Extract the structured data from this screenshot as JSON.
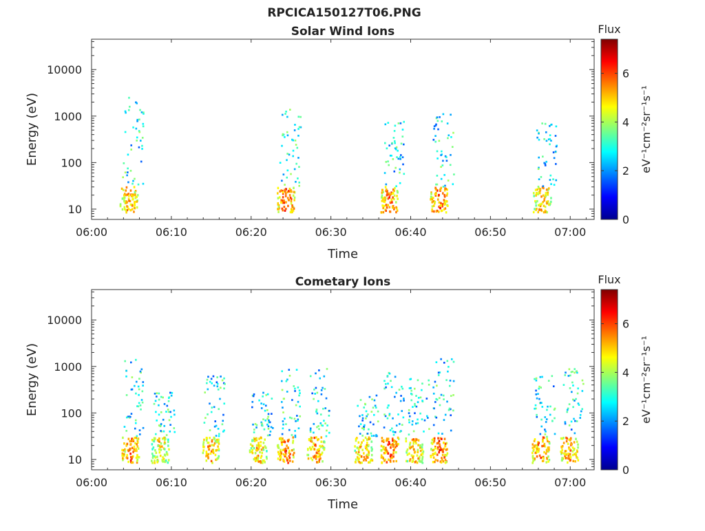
{
  "figure": {
    "title": "RPCICA150127T06.PNG"
  },
  "chart_data": [
    {
      "type": "heatmap",
      "title": "Solar Wind Ions",
      "xlabel": "Time",
      "ylabel": "Energy (eV)",
      "x_ticks": [
        "06:00",
        "06:10",
        "06:20",
        "06:30",
        "06:40",
        "06:50",
        "07:00"
      ],
      "x_range_minutes": [
        0,
        63
      ],
      "y_scale": "log",
      "y_ticks": [
        10,
        100,
        1000,
        10000
      ],
      "y_tick_labels": [
        "10",
        "100",
        "1000",
        "10000"
      ],
      "y_range": [
        6,
        45000
      ],
      "colorbar": {
        "title": "Flux",
        "label": "eV⁻¹cm⁻²sr⁻¹s⁻¹",
        "ticks": [
          0,
          2,
          4,
          6
        ],
        "range": [
          0,
          7.4
        ]
      },
      "bursts": [
        {
          "t": 4.6,
          "core_flux": 6.4,
          "upper": 3200
        },
        {
          "t": 24.3,
          "core_flux": 6.8,
          "upper": 1500
        },
        {
          "t": 37.3,
          "core_flux": 6.6,
          "upper": 900
        },
        {
          "t": 43.5,
          "core_flux": 6.7,
          "upper": 1200
        },
        {
          "t": 56.4,
          "core_flux": 6.2,
          "upper": 800
        }
      ]
    },
    {
      "type": "heatmap",
      "title": "Cometary Ions",
      "xlabel": "Time",
      "ylabel": "Energy (eV)",
      "x_ticks": [
        "06:00",
        "06:10",
        "06:20",
        "06:30",
        "06:40",
        "06:50",
        "07:00"
      ],
      "x_range_minutes": [
        0,
        63
      ],
      "y_scale": "log",
      "y_ticks": [
        10,
        100,
        1000,
        10000
      ],
      "y_tick_labels": [
        "10",
        "100",
        "1000",
        "10000"
      ],
      "y_range": [
        6,
        45000
      ],
      "colorbar": {
        "title": "Flux",
        "label": "eV⁻¹cm⁻²sr⁻¹s⁻¹",
        "ticks": [
          0,
          2,
          4,
          6
        ],
        "range": [
          0,
          7.4
        ]
      },
      "bursts": [
        {
          "t": 4.8,
          "core_flux": 6.6,
          "upper": 1500
        },
        {
          "t": 8.5,
          "core_flux": 5.8,
          "upper": 300
        },
        {
          "t": 14.8,
          "core_flux": 6.2,
          "upper": 700
        },
        {
          "t": 20.8,
          "core_flux": 6.0,
          "upper": 300
        },
        {
          "t": 24.3,
          "core_flux": 6.8,
          "upper": 900
        },
        {
          "t": 28.0,
          "core_flux": 6.4,
          "upper": 1100
        },
        {
          "t": 34.0,
          "core_flux": 6.3,
          "upper": 300
        },
        {
          "t": 37.3,
          "core_flux": 6.8,
          "upper": 800
        },
        {
          "t": 40.4,
          "core_flux": 6.2,
          "upper": 600
        },
        {
          "t": 43.5,
          "core_flux": 6.9,
          "upper": 2000
        },
        {
          "t": 56.2,
          "core_flux": 6.6,
          "upper": 700
        },
        {
          "t": 59.8,
          "core_flux": 6.4,
          "upper": 1000
        }
      ]
    }
  ]
}
